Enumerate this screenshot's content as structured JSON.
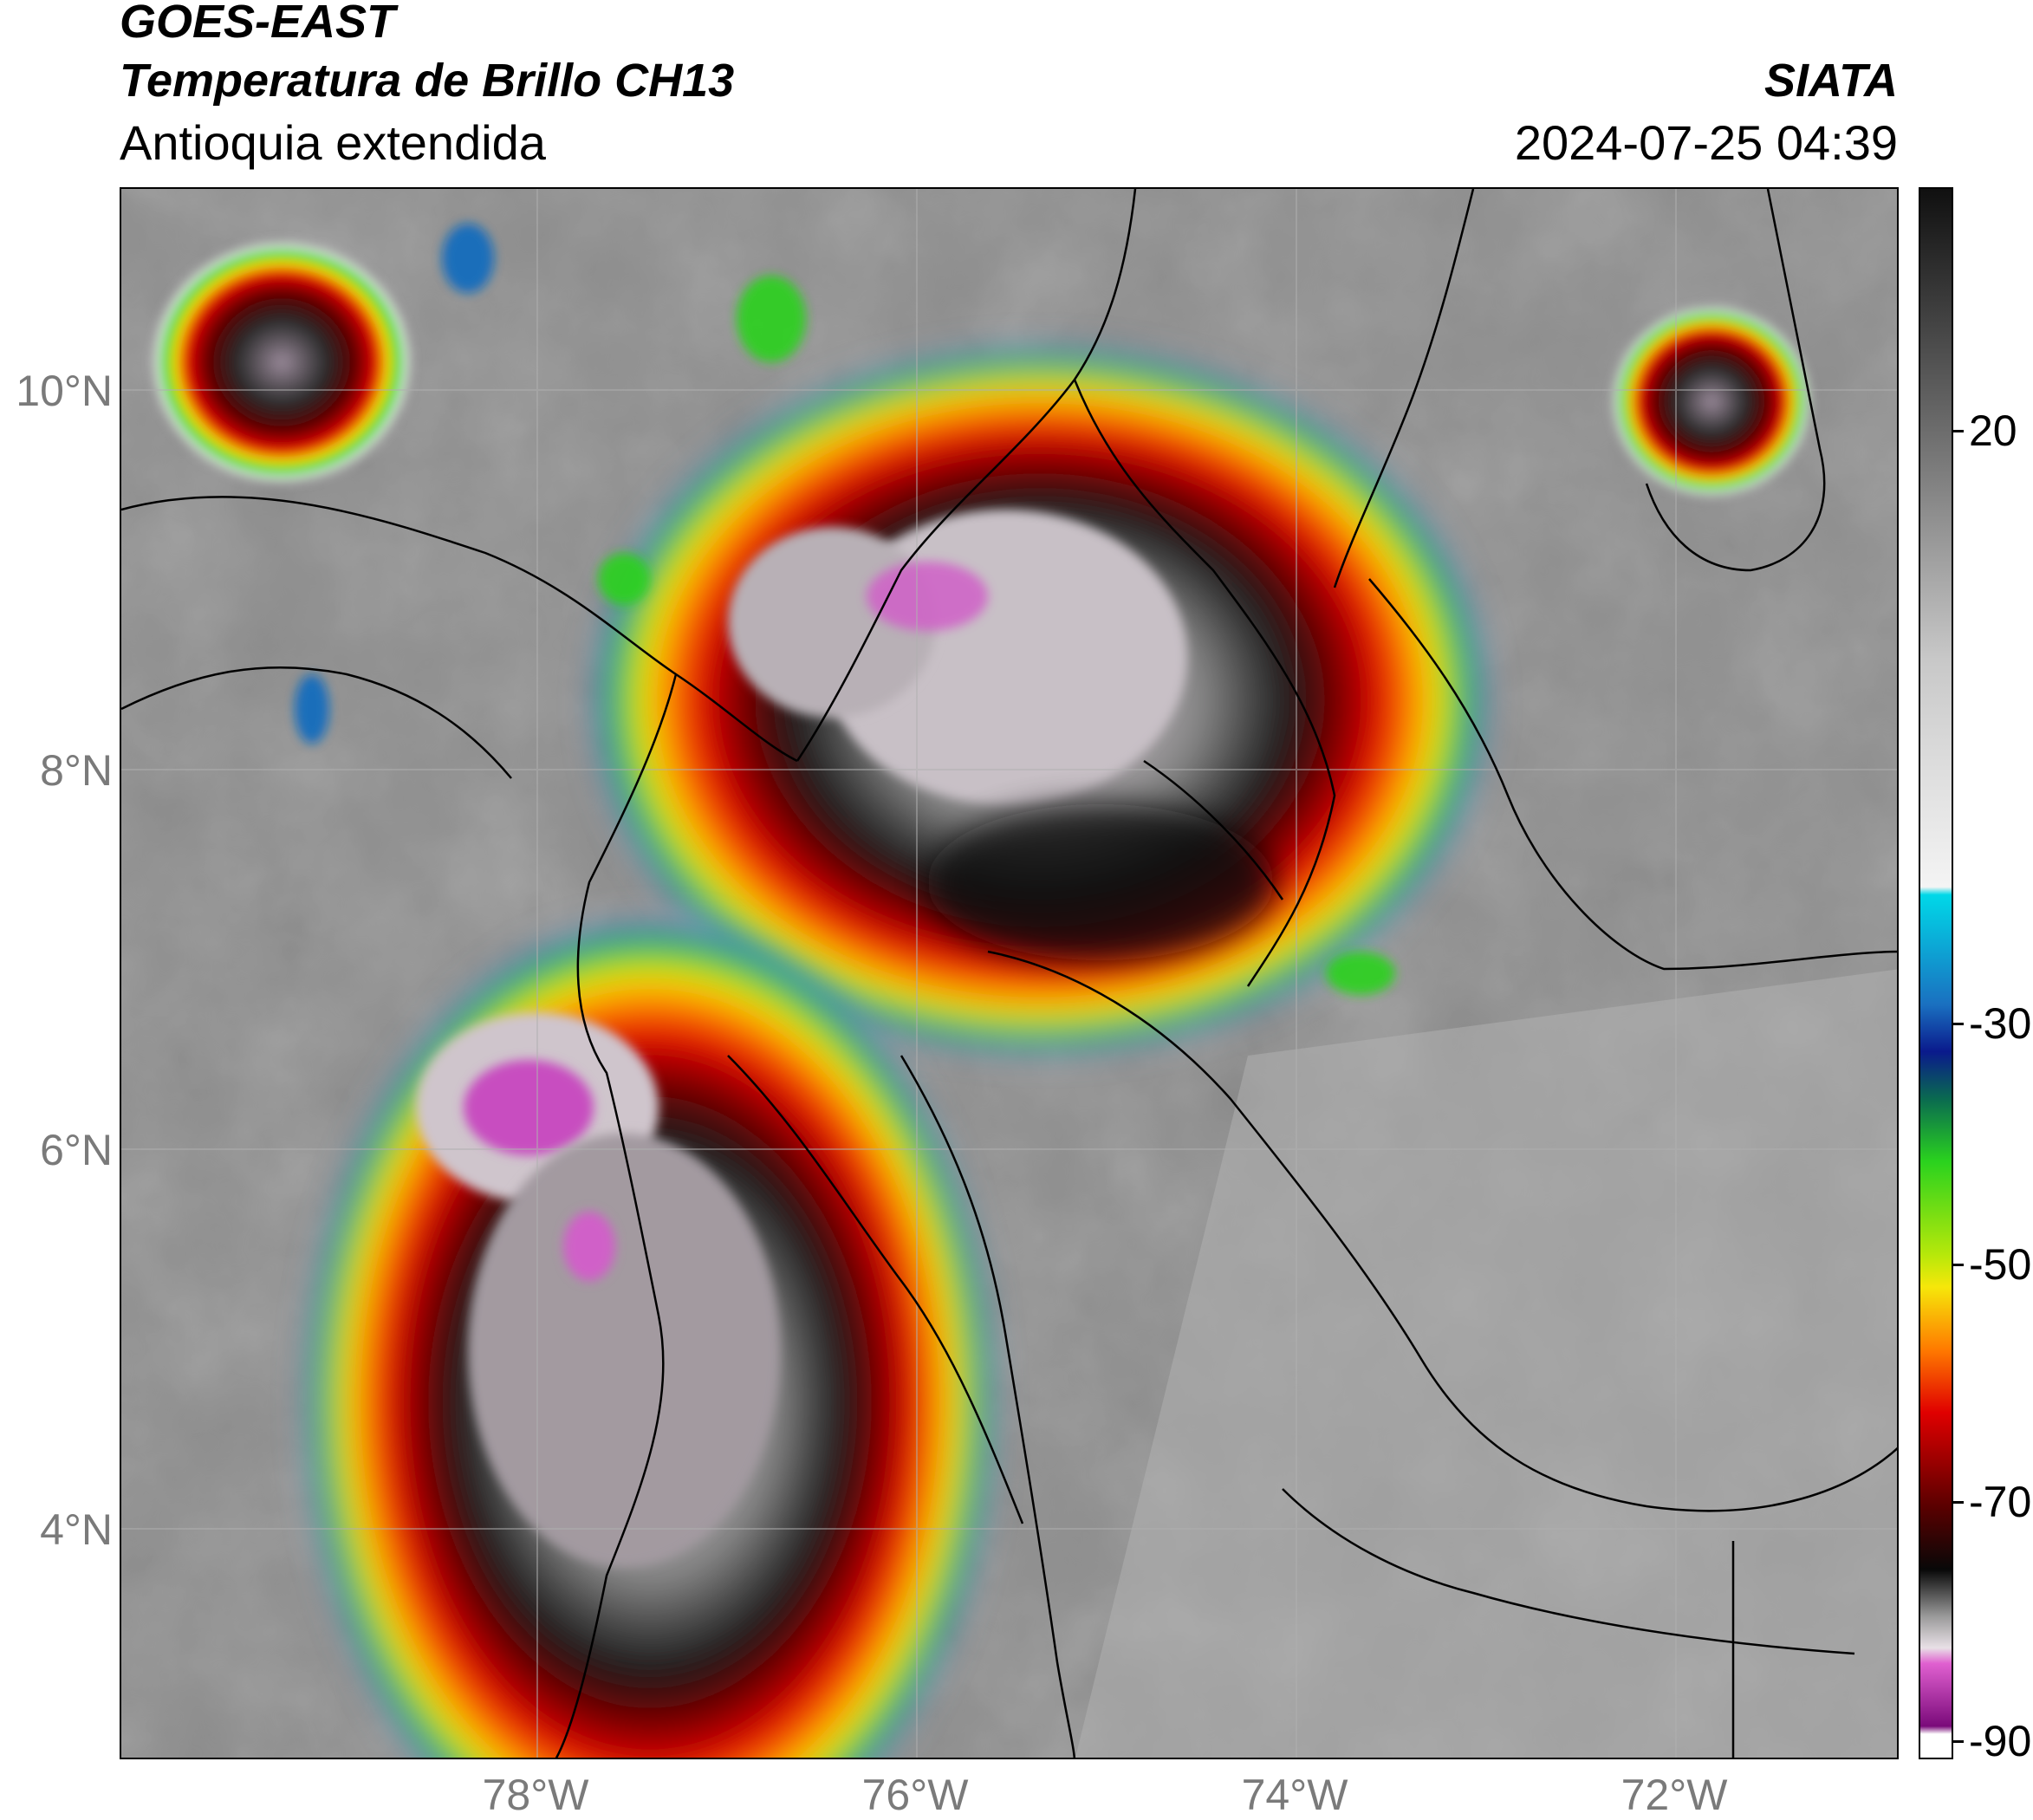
{
  "header": {
    "title": "GOES-EAST",
    "product": "Temperatura de Brillo CH13",
    "region": "Antioquia extendida",
    "organization": "SIATA",
    "timestamp": "2024-07-25 04:39"
  },
  "map": {
    "latitude_labels": [
      "10°N",
      "8°N",
      "6°N",
      "4°N"
    ],
    "longitude_labels": [
      "78°W",
      "76°W",
      "74°W",
      "72°W"
    ]
  },
  "colorbar": {
    "tick_labels": [
      "20",
      "-30",
      "-50",
      "-70",
      "-90"
    ],
    "unit_range": [
      -92,
      34
    ],
    "colors": {
      "warm_gray_top": "#101010",
      "light_gray": "#f4f4f4",
      "cyan": "#00d8e8",
      "dark_blue": "#0a1a8c",
      "green": "#2ad21e",
      "yellow": "#f6e70a",
      "orange": "#ff7a00",
      "red": "#e00000",
      "dark_red": "#5a0000",
      "black": "#080808",
      "pink": "#e060d0",
      "purple": "#7a0a7a",
      "white_bottom": "#ffffff"
    }
  }
}
